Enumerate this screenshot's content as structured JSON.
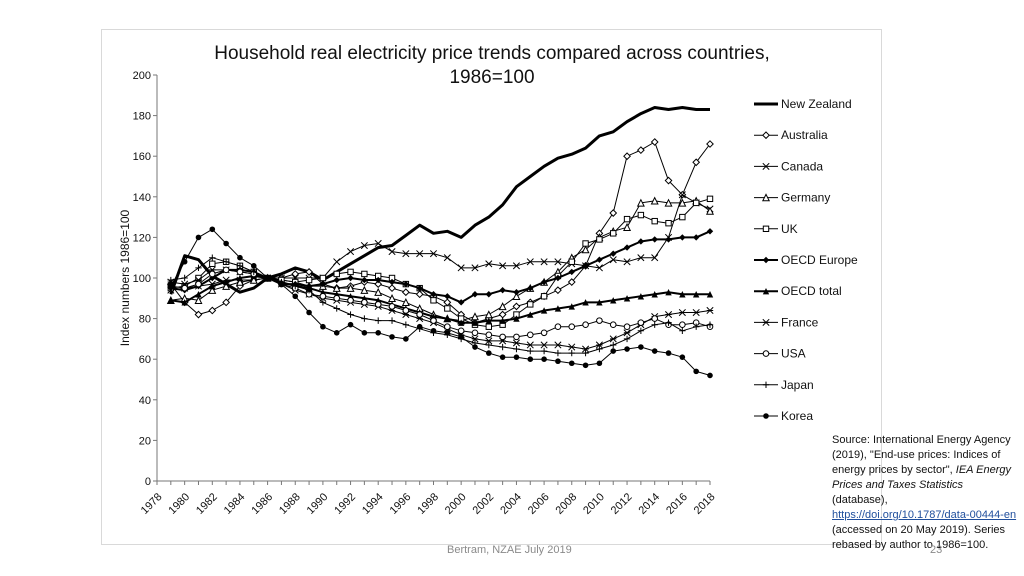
{
  "chart_data": {
    "type": "line",
    "title_line1": "Household real electricity price trends compared across countries,",
    "title_line2": "1986=100",
    "ylabel": "Index numbers 1986=100",
    "xlabel": "",
    "ylim": [
      0,
      200
    ],
    "yticks": [
      0,
      20,
      40,
      60,
      80,
      100,
      120,
      140,
      160,
      180,
      200
    ],
    "x": [
      1978,
      1979,
      1980,
      1981,
      1982,
      1983,
      1984,
      1985,
      1986,
      1987,
      1988,
      1989,
      1990,
      1991,
      1992,
      1993,
      1994,
      1995,
      1996,
      1997,
      1998,
      1999,
      2000,
      2001,
      2002,
      2003,
      2004,
      2005,
      2006,
      2007,
      2008,
      2009,
      2010,
      2011,
      2012,
      2013,
      2014,
      2015,
      2016,
      2017,
      2018
    ],
    "xtick_labels": [
      "1978",
      "1980",
      "1982",
      "1984",
      "1986",
      "1988",
      "1990",
      "1992",
      "1994",
      "1996",
      "1998",
      "2000",
      "2002",
      "2004",
      "2006",
      "2008",
      "2010",
      "2012",
      "2014",
      "2016",
      "2018"
    ],
    "series": [
      {
        "name": "New Zealand",
        "marker": "none",
        "width": 3,
        "values": [
          null,
          92,
          111,
          109,
          101,
          97,
          93,
          95,
          100,
          102,
          105,
          103,
          99,
          103,
          107,
          111,
          115,
          116,
          121,
          126,
          122,
          123,
          120,
          126,
          130,
          136,
          145,
          150,
          155,
          159,
          161,
          164,
          170,
          172,
          177,
          181,
          184,
          183,
          184,
          183,
          183
        ]
      },
      {
        "name": "Australia",
        "marker": "diamond",
        "width": 1,
        "values": [
          null,
          97,
          88,
          82,
          84,
          88,
          96,
          99,
          100,
          100,
          102,
          103,
          97,
          95,
          96,
          98,
          97,
          95,
          93,
          92,
          91,
          88,
          82,
          78,
          80,
          82,
          86,
          88,
          91,
          94,
          98,
          106,
          122,
          132,
          160,
          163,
          167,
          148,
          141,
          157,
          166
        ]
      },
      {
        "name": "Canada",
        "marker": "x",
        "width": 1,
        "values": [
          null,
          94,
          95,
          96,
          97,
          99,
          99,
          99,
          100,
          100,
          100,
          100,
          100,
          108,
          113,
          116,
          117,
          113,
          112,
          112,
          112,
          110,
          105,
          105,
          107,
          106,
          106,
          108,
          108,
          108,
          107,
          106,
          105,
          109,
          108,
          110,
          110,
          120,
          141,
          137,
          134
        ]
      },
      {
        "name": "Germany",
        "marker": "triangle-open",
        "width": 1,
        "values": [
          null,
          89,
          90,
          89,
          94,
          96,
          98,
          99,
          100,
          99,
          98,
          96,
          96,
          95,
          95,
          94,
          93,
          90,
          88,
          85,
          82,
          80,
          79,
          81,
          82,
          86,
          91,
          95,
          98,
          103,
          110,
          114,
          120,
          123,
          125,
          137,
          138,
          137,
          137,
          138,
          133
        ]
      },
      {
        "name": "UK",
        "marker": "square-open",
        "width": 1,
        "values": [
          null,
          95,
          96,
          100,
          107,
          108,
          106,
          103,
          100,
          99,
          98,
          99,
          100,
          102,
          103,
          102,
          101,
          100,
          97,
          95,
          89,
          85,
          80,
          77,
          76,
          77,
          82,
          87,
          91,
          101,
          108,
          117,
          119,
          122,
          129,
          131,
          128,
          127,
          130,
          137,
          139
        ]
      },
      {
        "name": "OECD Europe",
        "marker": "diamond-filled",
        "width": 2,
        "values": [
          null,
          95,
          94,
          96,
          100,
          104,
          104,
          103,
          100,
          97,
          97,
          96,
          97,
          99,
          100,
          99,
          99,
          98,
          97,
          95,
          92,
          91,
          88,
          92,
          92,
          94,
          93,
          95,
          98,
          100,
          103,
          106,
          109,
          112,
          115,
          118,
          119,
          119,
          120,
          120,
          123
        ]
      },
      {
        "name": "OECD total",
        "marker": "triangle-filled",
        "width": 2,
        "values": [
          null,
          89,
          88,
          92,
          96,
          98,
          100,
          101,
          100,
          98,
          96,
          95,
          93,
          92,
          91,
          90,
          89,
          87,
          85,
          83,
          81,
          80,
          78,
          78,
          79,
          79,
          80,
          82,
          84,
          85,
          86,
          88,
          88,
          89,
          90,
          91,
          92,
          93,
          92,
          92,
          92
        ]
      },
      {
        "name": "France",
        "marker": "star",
        "width": 1,
        "values": [
          null,
          98,
          97,
          99,
          104,
          104,
          103,
          102,
          100,
          97,
          94,
          92,
          90,
          89,
          88,
          87,
          86,
          84,
          82,
          80,
          78,
          75,
          72,
          70,
          69,
          69,
          68,
          67,
          67,
          67,
          66,
          65,
          67,
          70,
          73,
          77,
          81,
          82,
          83,
          83,
          84
        ]
      },
      {
        "name": "USA",
        "marker": "circle-open",
        "width": 1,
        "values": [
          null,
          96,
          95,
          97,
          102,
          104,
          103,
          102,
          100,
          97,
          95,
          92,
          91,
          90,
          89,
          88,
          87,
          86,
          84,
          82,
          79,
          76,
          74,
          73,
          72,
          71,
          71,
          72,
          73,
          76,
          76,
          77,
          79,
          77,
          76,
          78,
          80,
          77,
          77,
          78,
          76
        ]
      },
      {
        "name": "Japan",
        "marker": "plus",
        "width": 1,
        "values": [
          null,
          99,
          100,
          105,
          110,
          108,
          106,
          103,
          100,
          98,
          96,
          94,
          88,
          85,
          82,
          80,
          79,
          79,
          77,
          75,
          73,
          72,
          70,
          68,
          67,
          66,
          65,
          64,
          64,
          63,
          63,
          63,
          65,
          67,
          70,
          74,
          77,
          78,
          74,
          76,
          77
        ]
      },
      {
        "name": "Korea",
        "marker": "dot",
        "width": 1,
        "values": [
          null,
          96,
          108,
          120,
          124,
          117,
          110,
          106,
          100,
          97,
          91,
          83,
          76,
          73,
          77,
          73,
          73,
          71,
          70,
          76,
          74,
          73,
          71,
          66,
          63,
          61,
          61,
          60,
          60,
          59,
          58,
          57,
          58,
          64,
          65,
          66,
          64,
          63,
          61,
          54,
          52
        ]
      }
    ]
  },
  "source": {
    "line1": "Source:  International Energy",
    "line2": "Agency (2019), \"End-use",
    "line3": "prices: Indices of energy prices by",
    "line4": "sector\",",
    "italic": "IEA Energy Prices and Taxes Statistics",
    "after_italic": "(database),",
    "link": "https://doi.org/10.1787/data-00444-en",
    "tail": "(accessed on 20 May 2019). Series rebased by author to 1986=100."
  },
  "footer": "Bertram, NZAE July 2019",
  "slide_number": "23"
}
